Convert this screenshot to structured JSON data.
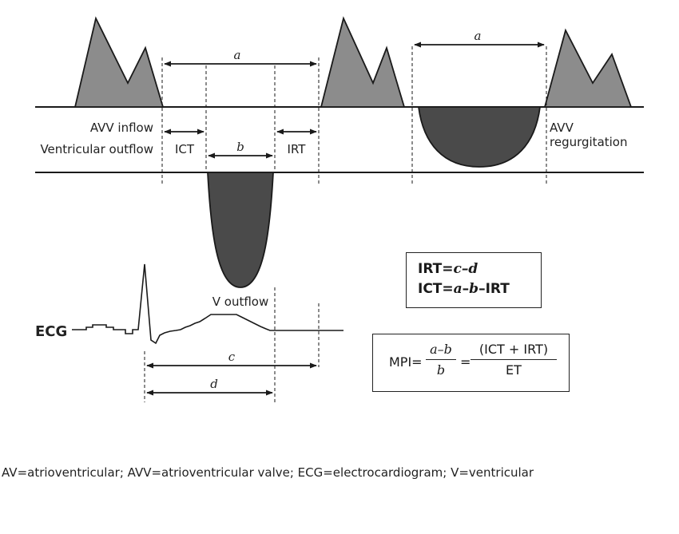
{
  "labels": {
    "a_top": "a",
    "a_right": "a",
    "b": "b",
    "c": "c",
    "d": "d",
    "avv_inflow": "AVV inflow",
    "ventricular_outflow": "Ventricular outflow",
    "ict": "ICT",
    "irt": "IRT",
    "avv": "AVV",
    "regurgitation": "regurgitation",
    "v_outflow": "V outflow",
    "ecg": "ECG"
  },
  "formulas": {
    "irt_prefix": "IRT=",
    "irt_expr": "c–d",
    "ict_prefix": "ICT=",
    "ict_a": "a",
    "ict_dash1": "–",
    "ict_b": "b",
    "ict_suffix": "–IRT"
  },
  "mpi": {
    "label": "MPI=",
    "frac1_num": "a–b",
    "frac1_den": "b",
    "equals": "=",
    "frac2_num": "(ICT + IRT)",
    "frac2_den": "ET"
  },
  "caption": "AV=atrioventricular; AVV=atrioventricular valve; ECG=electrocardiogram; V=ventricular",
  "colors": {
    "light_fill": "#8c8c8c",
    "dark_fill": "#4a4a4a",
    "line": "#1a1a1a"
  }
}
